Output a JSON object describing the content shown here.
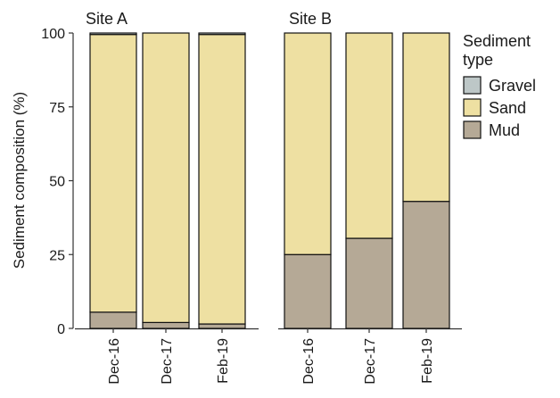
{
  "chart_data": {
    "type": "bar",
    "stacked": true,
    "ylabel": "Sediment composition (%)",
    "ylim": [
      0,
      100
    ],
    "yticks": [
      0,
      25,
      50,
      75,
      100
    ],
    "categories": [
      "Dec-16",
      "Dec-17",
      "Feb-19"
    ],
    "facets": [
      {
        "title": "Site A",
        "series": [
          {
            "name": "Mud",
            "values": [
              5.5,
              2.0,
              1.5
            ]
          },
          {
            "name": "Sand",
            "values": [
              94.0,
              98.0,
              98.0
            ]
          },
          {
            "name": "Gravel",
            "values": [
              0.5,
              0.0,
              0.5
            ]
          }
        ]
      },
      {
        "title": "Site B",
        "series": [
          {
            "name": "Mud",
            "values": [
              25.0,
              30.5,
              43.0
            ]
          },
          {
            "name": "Sand",
            "values": [
              75.0,
              69.5,
              57.0
            ]
          },
          {
            "name": "Gravel",
            "values": [
              0.0,
              0.0,
              0.0
            ]
          }
        ]
      }
    ],
    "legend": {
      "title_lines": [
        "Sediment",
        "type"
      ],
      "items": [
        "Gravel",
        "Sand",
        "Mud"
      ],
      "placement": "right"
    },
    "colors": {
      "Gravel": "#bdc7c7",
      "Sand": "#eee0a2",
      "Mud": "#b5a996"
    },
    "grid": false
  }
}
